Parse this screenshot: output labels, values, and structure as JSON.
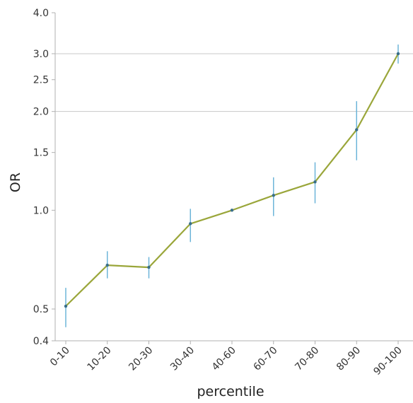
{
  "chart_data": {
    "type": "line",
    "title": "",
    "xlabel": "percentile",
    "ylabel": "OR",
    "y_scale": "log",
    "ylim": [
      0.4,
      4.0
    ],
    "grid": "horizontal",
    "y_ticks": [
      {
        "value": 0.4,
        "label": "0.4"
      },
      {
        "value": 0.5,
        "label": "0.5"
      },
      {
        "value": 1.0,
        "label": "1.0"
      },
      {
        "value": 1.5,
        "label": "1.5"
      },
      {
        "value": 2.0,
        "label": "2.0"
      },
      {
        "value": 2.5,
        "label": "2.5"
      },
      {
        "value": 3.0,
        "label": "3.0"
      },
      {
        "value": 4.0,
        "label": "4.0"
      }
    ],
    "gridline_values": [
      2.0,
      3.0
    ],
    "categories": [
      "0-10",
      "10-20",
      "20-30",
      "30-40",
      "40-60",
      "60-70",
      "70-80",
      "80-90",
      "90-100"
    ],
    "series": [
      {
        "values": [
          0.51,
          0.68,
          0.67,
          0.91,
          1.0,
          1.11,
          1.22,
          1.76,
          3.0
        ],
        "ci_low": [
          0.44,
          0.62,
          0.62,
          0.8,
          1.0,
          0.96,
          1.05,
          1.42,
          2.8
        ],
        "ci_high": [
          0.58,
          0.75,
          0.72,
          1.01,
          1.0,
          1.26,
          1.4,
          2.15,
          3.2
        ]
      }
    ],
    "colors": {
      "line": "#9aa63a",
      "point": "#3a6f8a",
      "error_bar": "#6db5d9",
      "gridline": "#c8c8c8",
      "axis": "#b0b0b0"
    }
  }
}
